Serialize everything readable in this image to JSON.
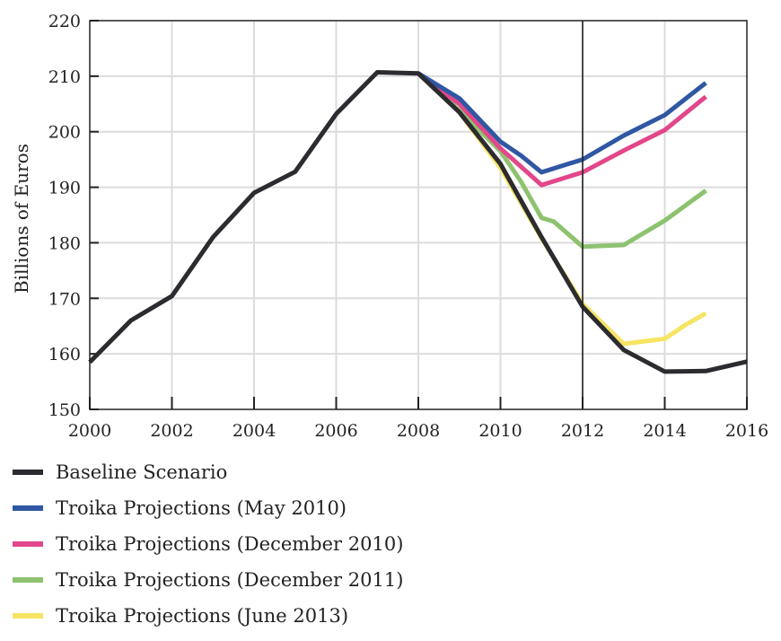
{
  "chart_data": {
    "type": "line",
    "ylabel": "Billions of Euros",
    "xlim": [
      2000,
      2016
    ],
    "ylim": [
      150,
      220
    ],
    "x_ticks": [
      "2000",
      "2002",
      "2004",
      "2006",
      "2008",
      "2010",
      "2012",
      "2014",
      "2016"
    ],
    "y_ticks": [
      "150",
      "160",
      "170",
      "180",
      "190",
      "200",
      "210",
      "220"
    ],
    "grid": true,
    "vertical_marker": 2012,
    "legend_position": "bottom",
    "series": [
      {
        "name": "Baseline Scenario",
        "color": "#2b2b30",
        "x": [
          2000,
          2001,
          2002,
          2003,
          2004,
          2005,
          2006,
          2007,
          2008,
          2009,
          2010,
          2011,
          2012,
          2013,
          2014,
          2015,
          2016
        ],
        "values": [
          158.5,
          166,
          170.4,
          181,
          189,
          192.8,
          203.2,
          210.7,
          210.5,
          203.5,
          194.2,
          181,
          168.5,
          160.7,
          156.8,
          156.9,
          158.6
        ]
      },
      {
        "name": "Troika Projections (May 2010)",
        "color": "#2f57a3",
        "x": [
          2008,
          2009,
          2010,
          2010.5,
          2011,
          2012,
          2013,
          2014,
          2015
        ],
        "values": [
          210.5,
          206,
          198.2,
          195.7,
          192.7,
          195,
          199.3,
          203,
          208.8
        ]
      },
      {
        "name": "Troika Projections (December 2010)",
        "color": "#e2478a",
        "x": [
          2008,
          2009,
          2010,
          2011,
          2012,
          2013,
          2014,
          2015
        ],
        "values": [
          210.5,
          205,
          197,
          190.4,
          192.7,
          196.6,
          200.3,
          206.3
        ]
      },
      {
        "name": "Troika Projections (December 2011)",
        "color": "#8dc26f",
        "x": [
          2008,
          2009,
          2010,
          2010.5,
          2011,
          2011.3,
          2012,
          2013,
          2014,
          2015
        ],
        "values": [
          210.5,
          203.8,
          196.5,
          191,
          184.5,
          183.8,
          179.3,
          179.6,
          184,
          189.4
        ]
      },
      {
        "name": "Troika Projections (June 2013)",
        "color": "#f6e463",
        "x": [
          2008,
          2009,
          2010,
          2011,
          2012,
          2013,
          2014,
          2014.5,
          2015
        ],
        "values": [
          210.5,
          203.5,
          193.5,
          180.8,
          169,
          161.8,
          162.7,
          165.2,
          167.3
        ]
      }
    ]
  }
}
